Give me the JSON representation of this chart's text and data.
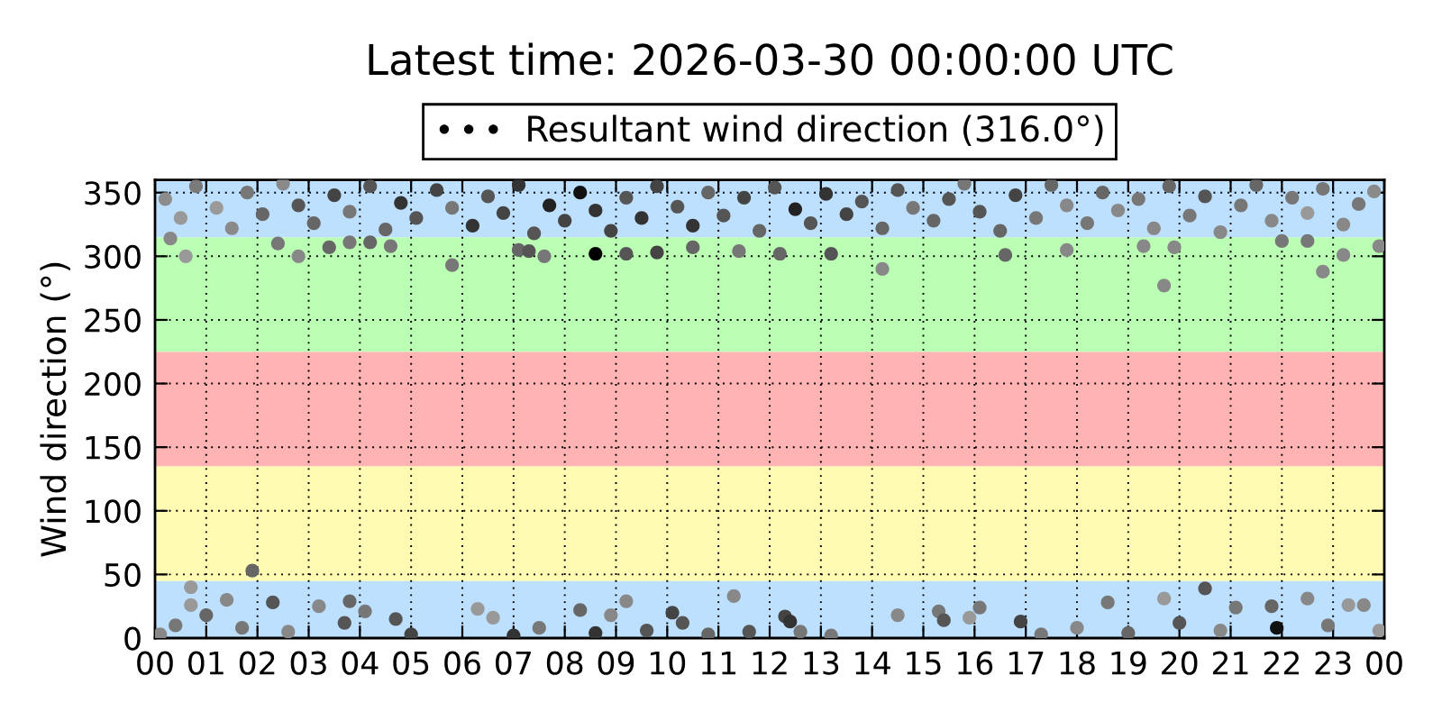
{
  "chart_data": {
    "type": "scatter",
    "title": "Latest time: 2026-03-30 00:00:00 UTC",
    "ylabel": "Wind direction (°)",
    "xlim": [
      0,
      24
    ],
    "ylim": [
      0,
      360
    ],
    "xticks": [
      {
        "value": 0,
        "label": "00"
      },
      {
        "value": 1,
        "label": "01"
      },
      {
        "value": 2,
        "label": "02"
      },
      {
        "value": 3,
        "label": "03"
      },
      {
        "value": 4,
        "label": "04"
      },
      {
        "value": 5,
        "label": "05"
      },
      {
        "value": 6,
        "label": "06"
      },
      {
        "value": 7,
        "label": "07"
      },
      {
        "value": 8,
        "label": "08"
      },
      {
        "value": 9,
        "label": "09"
      },
      {
        "value": 10,
        "label": "10"
      },
      {
        "value": 11,
        "label": "11"
      },
      {
        "value": 12,
        "label": "12"
      },
      {
        "value": 13,
        "label": "13"
      },
      {
        "value": 14,
        "label": "14"
      },
      {
        "value": 15,
        "label": "15"
      },
      {
        "value": 16,
        "label": "16"
      },
      {
        "value": 17,
        "label": "17"
      },
      {
        "value": 18,
        "label": "18"
      },
      {
        "value": 19,
        "label": "19"
      },
      {
        "value": 20,
        "label": "20"
      },
      {
        "value": 21,
        "label": "21"
      },
      {
        "value": 22,
        "label": "22"
      },
      {
        "value": 23,
        "label": "23"
      },
      {
        "value": 24,
        "label": "00"
      }
    ],
    "yticks": [
      0,
      50,
      100,
      150,
      200,
      250,
      300,
      350
    ],
    "grid": true,
    "legend": "top",
    "marker": "circle",
    "bands": [
      {
        "axis": "y",
        "from": 0,
        "to": 45,
        "color": "#bde0ff"
      },
      {
        "axis": "y",
        "from": 45,
        "to": 135,
        "color": "#fffbb3"
      },
      {
        "axis": "y",
        "from": 135,
        "to": 225,
        "color": "#ffb3b3"
      },
      {
        "axis": "y",
        "from": 225,
        "to": 315,
        "color": "#bbffb4"
      },
      {
        "axis": "y",
        "from": 315,
        "to": 360,
        "color": "#bde0ff"
      }
    ],
    "series": [
      {
        "name": "Resultant wind direction (316.0°)",
        "color": "#000000",
        "x": [
          0.2,
          0.5,
          0.8,
          1.2,
          1.5,
          1.8,
          2.1,
          2.5,
          2.8,
          3.1,
          3.5,
          3.8,
          4.2,
          4.5,
          4.8,
          5.1,
          5.5,
          5.8,
          6.2,
          6.5,
          6.8,
          7.1,
          7.4,
          7.7,
          8.0,
          8.3,
          8.6,
          8.9,
          9.2,
          9.5,
          9.8,
          10.2,
          10.5,
          10.8,
          11.1,
          11.5,
          11.8,
          12.1,
          12.5,
          12.8,
          13.1,
          13.5,
          13.8,
          14.2,
          14.5,
          14.8,
          15.2,
          15.5,
          15.8,
          16.1,
          16.5,
          16.8,
          17.2,
          17.5,
          17.8,
          18.2,
          18.5,
          18.8,
          19.2,
          19.5,
          19.8,
          20.2,
          20.5,
          20.8,
          21.2,
          21.5,
          21.8,
          22.2,
          22.5,
          22.8,
          23.2,
          23.5,
          23.8,
          0.3,
          0.6,
          2.4,
          2.8,
          3.4,
          3.8,
          4.2,
          4.6,
          5.8,
          7.1,
          7.3,
          7.6,
          8.6,
          9.2,
          9.8,
          10.5,
          11.4,
          12.2,
          13.2,
          14.2,
          16.6,
          17.8,
          19.3,
          19.7,
          19.9,
          22.0,
          22.5,
          22.8,
          23.2,
          23.9,
          0.1,
          0.4,
          0.7,
          0.7,
          1.0,
          1.4,
          1.7,
          1.9,
          2.3,
          2.6,
          3.2,
          3.7,
          3.8,
          4.1,
          4.7,
          5.0,
          6.3,
          6.6,
          7.0,
          7.5,
          8.3,
          8.6,
          8.9,
          9.2,
          9.6,
          10.1,
          10.3,
          10.8,
          11.3,
          11.6,
          12.3,
          12.4,
          12.6,
          13.2,
          14.5,
          15.3,
          15.4,
          15.9,
          16.1,
          16.9,
          17.3,
          18.0,
          18.6,
          19.0,
          19.7,
          20.0,
          20.5,
          20.8,
          21.1,
          21.8,
          21.9,
          22.5,
          22.9,
          23.3,
          23.6,
          23.9
        ],
        "values": [
          345,
          330,
          355,
          338,
          322,
          350,
          333,
          357,
          340,
          326,
          348,
          335,
          355,
          321,
          342,
          330,
          352,
          338,
          324,
          347,
          334,
          356,
          318,
          340,
          328,
          350,
          336,
          320,
          346,
          330,
          355,
          339,
          324,
          350,
          332,
          346,
          320,
          354,
          337,
          326,
          349,
          333,
          343,
          322,
          352,
          338,
          328,
          345,
          357,
          335,
          320,
          348,
          330,
          356,
          340,
          326,
          350,
          336,
          345,
          322,
          355,
          332,
          347,
          319,
          340,
          356,
          328,
          346,
          334,
          353,
          325,
          341,
          351,
          314,
          300,
          310,
          300,
          307,
          311,
          311,
          308,
          293,
          305,
          304,
          300,
          302,
          302,
          303,
          307,
          304,
          302,
          302,
          290,
          301,
          305,
          308,
          277,
          307,
          312,
          312,
          288,
          301,
          308,
          3,
          10,
          40,
          26,
          18,
          30,
          8,
          53,
          28,
          5,
          25,
          12,
          29,
          21,
          15,
          3,
          23,
          16,
          2,
          8,
          22,
          4,
          18,
          29,
          6,
          20,
          12,
          3,
          33,
          5,
          17,
          13,
          5,
          2,
          18,
          21,
          14,
          16,
          24,
          13,
          3,
          8,
          28,
          4,
          31,
          12,
          39,
          6,
          24,
          25,
          8,
          31,
          10,
          26,
          26,
          6
        ],
        "colors": [
          "#8c8c8c",
          "#999999",
          "#7a7a7a",
          "#9a9a9a",
          "#8a8a8a",
          "#777777",
          "#666666",
          "#8a8a8a",
          "#555555",
          "#666666",
          "#444444",
          "#777777",
          "#555555",
          "#666666",
          "#333333",
          "#555555",
          "#444444",
          "#777777",
          "#333333",
          "#555555",
          "#444444",
          "#333333",
          "#555555",
          "#222222",
          "#444444",
          "#111111",
          "#333333",
          "#444444",
          "#555555",
          "#333333",
          "#444444",
          "#555555",
          "#333333",
          "#666666",
          "#555555",
          "#444444",
          "#666666",
          "#555555",
          "#222222",
          "#555555",
          "#333333",
          "#444444",
          "#555555",
          "#666666",
          "#555555",
          "#777777",
          "#666666",
          "#555555",
          "#777777",
          "#555555",
          "#666666",
          "#444444",
          "#777777",
          "#666666",
          "#888888",
          "#777777",
          "#666666",
          "#888888",
          "#777777",
          "#888888",
          "#666666",
          "#777777",
          "#555555",
          "#888888",
          "#777777",
          "#666666",
          "#888888",
          "#777777",
          "#999999",
          "#777777",
          "#888888",
          "#777777",
          "#8a8a8a",
          "#888888",
          "#999999",
          "#777777",
          "#888888",
          "#666666",
          "#777777",
          "#666666",
          "#777777",
          "#777777",
          "#666666",
          "#555555",
          "#777777",
          "#000000",
          "#555555",
          "#444444",
          "#666666",
          "#777777",
          "#666666",
          "#555555",
          "#888888",
          "#666666",
          "#888888",
          "#888888",
          "#888888",
          "#888888",
          "#777777",
          "#777777",
          "#888888",
          "#888888",
          "#888888",
          "#888888",
          "#777777",
          "#999999",
          "#999999",
          "#666666",
          "#888888",
          "#777777",
          "#666666",
          "#555555",
          "#888888",
          "#888888",
          "#555555",
          "#666666",
          "#777777",
          "#555555",
          "#444444",
          "#999999",
          "#999999",
          "#333333",
          "#777777",
          "#666666",
          "#333333",
          "#888888",
          "#888888",
          "#555555",
          "#444444",
          "#555555",
          "#666666",
          "#888888",
          "#555555",
          "#444444",
          "#333333",
          "#777777",
          "#777777",
          "#888888",
          "#777777",
          "#555555",
          "#999999",
          "#777777",
          "#444444",
          "#777777",
          "#888888",
          "#777777",
          "#666666",
          "#999999",
          "#555555",
          "#555555",
          "#888888",
          "#777777",
          "#666666",
          "#111111",
          "#888888",
          "#777777",
          "#999999",
          "#888888",
          "#999999"
        ]
      }
    ]
  }
}
